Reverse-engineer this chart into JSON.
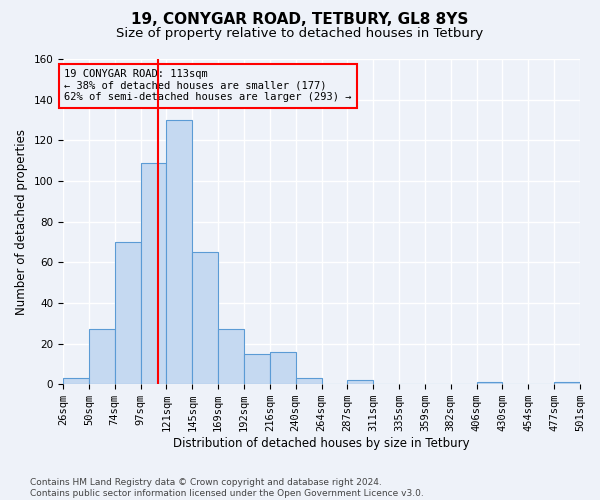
{
  "title1": "19, CONYGAR ROAD, TETBURY, GL8 8YS",
  "title2": "Size of property relative to detached houses in Tetbury",
  "xlabel": "Distribution of detached houses by size in Tetbury",
  "ylabel": "Number of detached properties",
  "bar_values": [
    3,
    27,
    70,
    109,
    130,
    65,
    27,
    15,
    16,
    3,
    0,
    2,
    0,
    0,
    0,
    0,
    1,
    0,
    0,
    1
  ],
  "bin_labels": [
    "26sqm",
    "50sqm",
    "74sqm",
    "97sqm",
    "121sqm",
    "145sqm",
    "169sqm",
    "192sqm",
    "216sqm",
    "240sqm",
    "264sqm",
    "287sqm",
    "311sqm",
    "335sqm",
    "359sqm",
    "382sqm",
    "406sqm",
    "430sqm",
    "454sqm",
    "477sqm",
    "501sqm"
  ],
  "n_bins": 20,
  "n_ticks": 21,
  "bar_color": "#c5d9f1",
  "bar_edge_color": "#5b9bd5",
  "red_line_bin": 3.6,
  "annotation_text_line1": "19 CONYGAR ROAD: 113sqm",
  "annotation_text_line2": "← 38% of detached houses are smaller (177)",
  "annotation_text_line3": "62% of semi-detached houses are larger (293) →",
  "ylim": [
    0,
    160
  ],
  "yticks": [
    0,
    20,
    40,
    60,
    80,
    100,
    120,
    140,
    160
  ],
  "footer": "Contains HM Land Registry data © Crown copyright and database right 2024.\nContains public sector information licensed under the Open Government Licence v3.0.",
  "bg_color": "#eef2f9",
  "grid_color": "#ffffff",
  "title1_fontsize": 11,
  "title2_fontsize": 9.5,
  "xlabel_fontsize": 8.5,
  "ylabel_fontsize": 8.5,
  "tick_fontsize": 7.5,
  "footer_fontsize": 6.5
}
